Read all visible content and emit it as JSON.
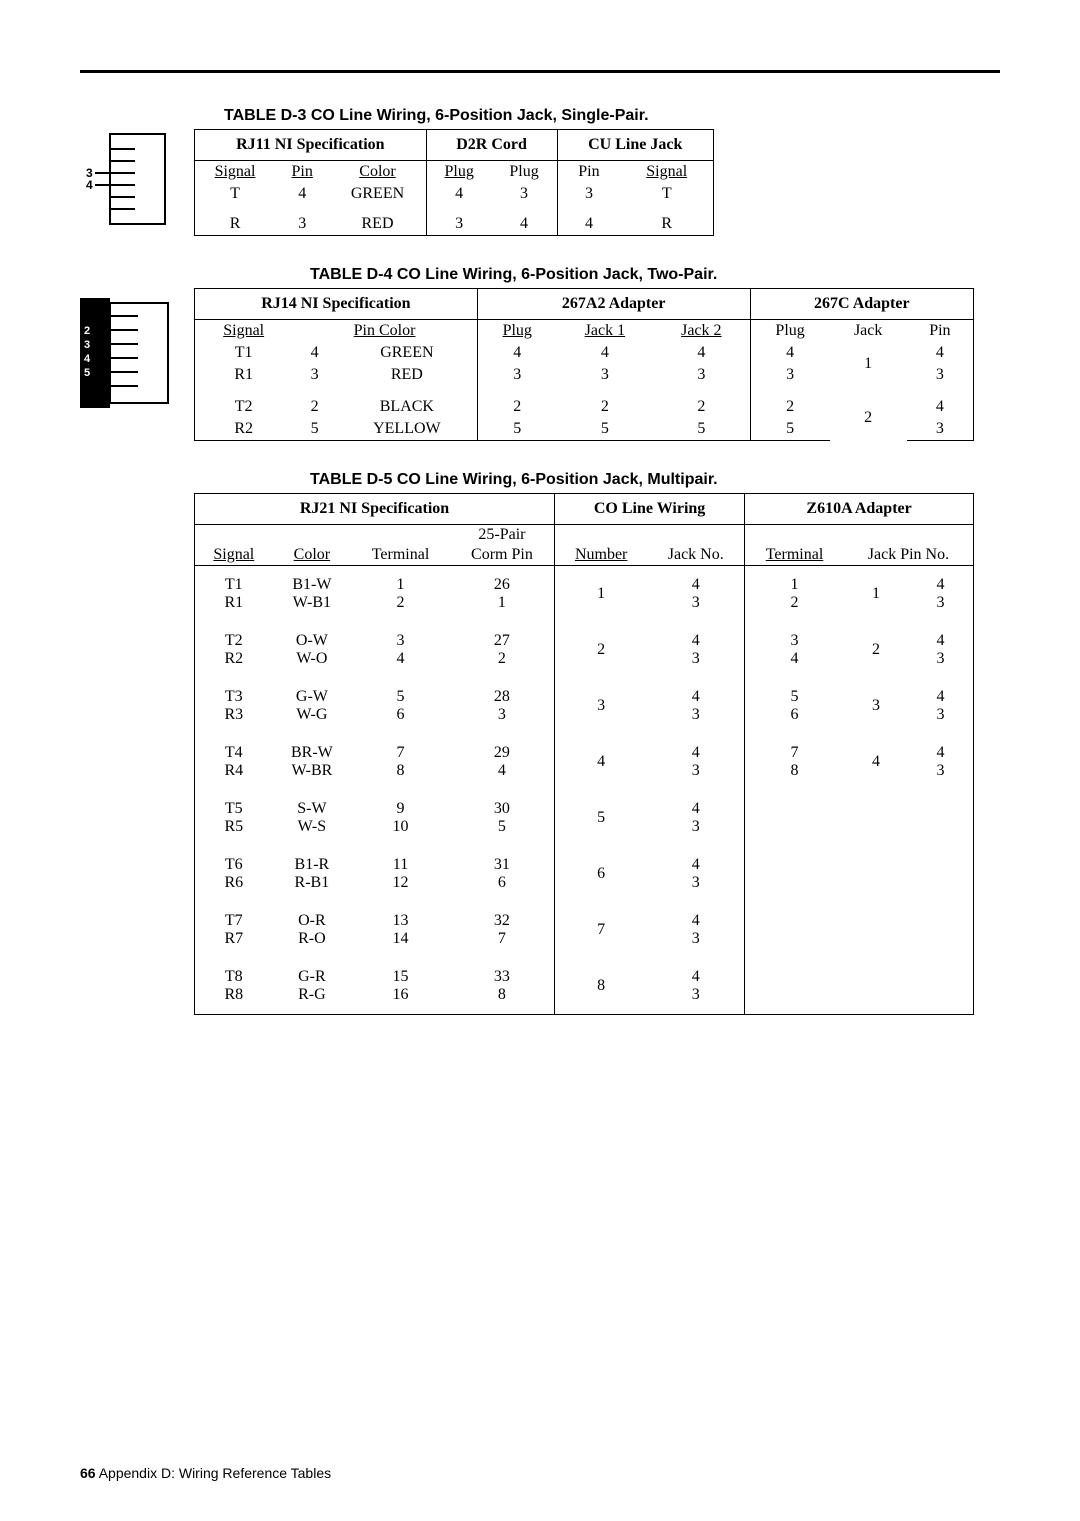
{
  "tableD3": {
    "title": "TABLE D-3  CO Line Wiring, 6-Position Jack, Single-Pair.",
    "headers": [
      "RJ11 NI Specification",
      "D2R Cord",
      "CU Line Jack"
    ],
    "col_labels": {
      "signal": "Signal",
      "pin": "Pin",
      "color": "Color",
      "plug": "Plug",
      "plug2": "Plug",
      "pin2": "Pin",
      "signal2": "Signal"
    },
    "rows": [
      {
        "signal": "T",
        "pin": "4",
        "color": "GREEN",
        "plug": "4",
        "plug2": "3",
        "pin2": "3",
        "signal2": "T"
      },
      {
        "signal": "R",
        "pin": "3",
        "color": "RED",
        "plug": "3",
        "plug2": "4",
        "pin2": "4",
        "signal2": "R"
      }
    ]
  },
  "tableD4": {
    "title": "TABLE D-4  CO Line Wiring, 6-Position Jack, Two-Pair.",
    "headers": [
      "RJ14 NI Specification",
      "267A2 Adapter",
      "267C Adapter"
    ],
    "col_labels": {
      "signal": "Signal",
      "pincolor": "Pin Color",
      "plug": "Plug",
      "jack1": "Jack 1",
      "jack2": "Jack 2",
      "plug2": "Plug",
      "jack": "Jack",
      "pin": "Pin"
    },
    "rows": [
      {
        "signal": "T1",
        "pin": "4",
        "color": "GREEN",
        "plug": "4",
        "j1": "4",
        "j2": "4",
        "plug2": "4",
        "jack": "",
        "pin2": "4"
      },
      {
        "signal": "R1",
        "pin": "3",
        "color": "RED",
        "plug": "3",
        "j1": "3",
        "j2": "3",
        "plug2": "3",
        "jack": "1",
        "pin2": "3"
      },
      {
        "signal": "T2",
        "pin": "2",
        "color": "BLACK",
        "plug": "2",
        "j1": "2",
        "j2": "2",
        "plug2": "2",
        "jack": "",
        "pin2": "4"
      },
      {
        "signal": "R2",
        "pin": "5",
        "color": "YELLOW",
        "plug": "5",
        "j1": "5",
        "j2": "5",
        "plug2": "5",
        "jack": "2",
        "pin2": "3"
      }
    ]
  },
  "tableD5": {
    "title": "TABLE D-5  CO Line Wiring, 6-Position Jack, Multipair.",
    "headers": [
      "RJ21 NI Specification",
      "CO Line Wiring",
      "Z610A Adapter"
    ],
    "col_labels": {
      "signal": "Signal",
      "color": "Color",
      "terminal": "Terminal",
      "cormpin_top": "25-Pair",
      "cormpin": "Corm Pin",
      "number": "Number",
      "jackno": "Jack No.",
      "terminal2": "Terminal",
      "jackpinno": "Jack Pin No."
    },
    "rows": [
      {
        "sig": [
          "T1",
          "R1"
        ],
        "color": [
          "B1-W",
          "W-B1"
        ],
        "term": [
          "1",
          "2"
        ],
        "corm": [
          "26",
          "1"
        ],
        "num": "1",
        "jack": [
          "4",
          "3"
        ],
        "term2": [
          "1",
          "2"
        ],
        "jp": [
          "",
          "1"
        ],
        "jpn": [
          "4",
          "3"
        ]
      },
      {
        "sig": [
          "T2",
          "R2"
        ],
        "color": [
          "O-W",
          "W-O"
        ],
        "term": [
          "3",
          "4"
        ],
        "corm": [
          "27",
          "2"
        ],
        "num": "2",
        "jack": [
          "4",
          "3"
        ],
        "term2": [
          "3",
          "4"
        ],
        "jp": [
          "",
          "2"
        ],
        "jpn": [
          "4",
          "3"
        ]
      },
      {
        "sig": [
          "T3",
          "R3"
        ],
        "color": [
          "G-W",
          "W-G"
        ],
        "term": [
          "5",
          "6"
        ],
        "corm": [
          "28",
          "3"
        ],
        "num": "3",
        "jack": [
          "4",
          "3"
        ],
        "term2": [
          "5",
          "6"
        ],
        "jp": [
          "",
          "3"
        ],
        "jpn": [
          "4",
          "3"
        ]
      },
      {
        "sig": [
          "T4",
          "R4"
        ],
        "color": [
          "BR-W",
          "W-BR"
        ],
        "term": [
          "7",
          "8"
        ],
        "corm": [
          "29",
          "4"
        ],
        "num": "4",
        "jack": [
          "4",
          "3"
        ],
        "term2": [
          "7",
          "8"
        ],
        "jp": [
          "",
          "4"
        ],
        "jpn": [
          "4",
          "3"
        ]
      },
      {
        "sig": [
          "T5",
          "R5"
        ],
        "color": [
          "S-W",
          "W-S"
        ],
        "term": [
          "9",
          "10"
        ],
        "corm": [
          "30",
          "5"
        ],
        "num": "5",
        "jack": [
          "4",
          "3"
        ],
        "term2": [
          "",
          ""
        ],
        "jp": [
          "",
          ""
        ],
        "jpn": [
          "",
          ""
        ]
      },
      {
        "sig": [
          "T6",
          "R6"
        ],
        "color": [
          "B1-R",
          "R-B1"
        ],
        "term": [
          "11",
          "12"
        ],
        "corm": [
          "31",
          "6"
        ],
        "num": "6",
        "jack": [
          "4",
          "3"
        ],
        "term2": [
          "",
          ""
        ],
        "jp": [
          "",
          ""
        ],
        "jpn": [
          "",
          ""
        ]
      },
      {
        "sig": [
          "T7",
          "R7"
        ],
        "color": [
          "O-R",
          "R-O"
        ],
        "term": [
          "13",
          "14"
        ],
        "corm": [
          "32",
          "7"
        ],
        "num": "7",
        "jack": [
          "4",
          "3"
        ],
        "term2": [
          "",
          ""
        ],
        "jp": [
          "",
          ""
        ],
        "jpn": [
          "",
          ""
        ]
      },
      {
        "sig": [
          "T8",
          "R8"
        ],
        "color": [
          "G-R",
          "R-G"
        ],
        "term": [
          "15",
          "16"
        ],
        "corm": [
          "33",
          "8"
        ],
        "num": "8",
        "jack": [
          "4",
          "3"
        ],
        "term2": [
          "",
          ""
        ],
        "jp": [
          "",
          ""
        ],
        "jpn": [
          "",
          ""
        ]
      }
    ]
  },
  "jackD3": {
    "labels": [
      "3",
      "4"
    ]
  },
  "jackD4": {
    "labels": [
      "2",
      "3",
      "4",
      "5"
    ]
  },
  "footer": {
    "page": "66",
    "text": "Appendix D: Wiring Reference Tables"
  }
}
